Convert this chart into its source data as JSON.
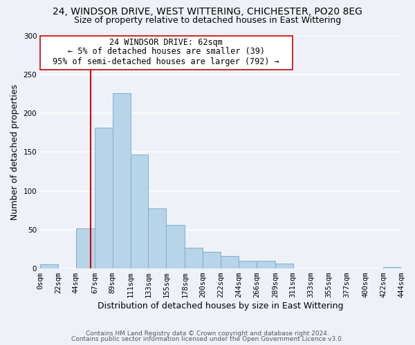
{
  "title_line1": "24, WINDSOR DRIVE, WEST WITTERING, CHICHESTER, PO20 8EG",
  "title_line2": "Size of property relative to detached houses in East Wittering",
  "xlabel": "Distribution of detached houses by size in East Wittering",
  "ylabel": "Number of detached properties",
  "bar_color": "#b8d4e8",
  "bar_edge_color": "#7ab0cc",
  "background_color": "#eef2f8",
  "gridcolor": "#ffffff",
  "bin_edges": [
    0,
    22,
    44,
    67,
    89,
    111,
    133,
    155,
    178,
    200,
    222,
    244,
    266,
    289,
    311,
    333,
    355,
    377,
    400,
    422,
    444
  ],
  "bin_labels": [
    "0sqm",
    "22sqm",
    "44sqm",
    "67sqm",
    "89sqm",
    "111sqm",
    "133sqm",
    "155sqm",
    "178sqm",
    "200sqm",
    "222sqm",
    "244sqm",
    "266sqm",
    "289sqm",
    "311sqm",
    "333sqm",
    "355sqm",
    "377sqm",
    "400sqm",
    "422sqm",
    "444sqm"
  ],
  "bar_heights": [
    5,
    0,
    52,
    181,
    226,
    147,
    77,
    56,
    27,
    21,
    16,
    10,
    10,
    6,
    0,
    0,
    0,
    0,
    0,
    2
  ],
  "property_line_x": 62,
  "property_line_color": "#cc0000",
  "annotation_text_line1": "24 WINDSOR DRIVE: 62sqm",
  "annotation_text_line2": "← 5% of detached houses are smaller (39)",
  "annotation_text_line3": "95% of semi-detached houses are larger (792) →",
  "annotation_box_color": "#ffffff",
  "annotation_box_edge_color": "#cc0000",
  "ylim": [
    0,
    300
  ],
  "yticks": [
    0,
    50,
    100,
    150,
    200,
    250,
    300
  ],
  "footer_line1": "Contains HM Land Registry data © Crown copyright and database right 2024.",
  "footer_line2": "Contains public sector information licensed under the Open Government Licence v3.0.",
  "title_fontsize": 10,
  "subtitle_fontsize": 9,
  "axis_label_fontsize": 9,
  "tick_fontsize": 7.5,
  "annotation_fontsize": 8.5,
  "footer_fontsize": 6.5
}
